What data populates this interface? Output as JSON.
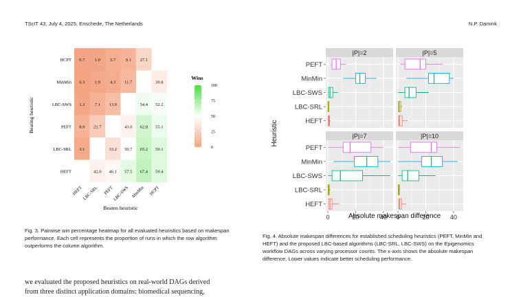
{
  "header": {
    "left": "TScIT 43, July 4, 2025, Enschede, The Netherlands",
    "right": "N.P. Damink"
  },
  "fig3": {
    "caption": "Fig. 3. Pairwise win percentage heatmap for all evaluated heuristics based on makespan performance. Each cell represents the proportion of runs in which the row algorithm outperforms the column algorithm."
  },
  "fig4": {
    "caption": "Fig. 4. Absolute makespan differences for established scheduling heuristics (PEFT, MinMin and HEFT) and the proposed LBC-based algorithms (LBC-SRL, LBC-SWS) on the Epigenomics workflow DAGs across varying processor counts. The x-axis shows the absolute makespan difference. Lower values indicate better scheduling performance."
  },
  "body": {
    "line1": "we evaluated the proposed heuristics on real-world DAGs derived",
    "line2": "from three distinct application domains: biomedical sequencing,"
  },
  "chart_data": [
    {
      "type": "heatmap",
      "xlabel": "Beaten heuristic",
      "ylabel": "Beating heuristic",
      "columns": [
        "HEFT",
        "LBC-SRL",
        "PEFT",
        "LBC-SWS",
        "MinMin",
        "HCPT"
      ],
      "rows": [
        "HCPT",
        "MinMin",
        "LBC-SWS",
        "PEFT",
        "LBC-SRL",
        "HEFT"
      ],
      "values": [
        [
          0.7,
          1.0,
          5.7,
          9.1,
          27.1,
          null
        ],
        [
          0.3,
          1.9,
          4.3,
          11.7,
          null,
          39.8
        ],
        [
          1.3,
          7.1,
          13.9,
          null,
          54.4,
          52.2
        ],
        [
          8.9,
          21.7,
          null,
          43.0,
          62.8,
          55.1
        ],
        [
          3.1,
          null,
          33.2,
          50.7,
          65.2,
          59.1
        ],
        [
          null,
          42.0,
          46.1,
          57.5,
          67.4,
          59.4
        ]
      ],
      "legend": {
        "title": "Wins",
        "ticks": [
          0,
          25,
          50,
          75,
          100
        ],
        "low_color": "#f4a582",
        "mid_color": "#ffffff",
        "high_color": "#4ddd44"
      }
    },
    {
      "type": "boxplot",
      "xlabel": "Absolute makespan difference",
      "ylabel": "Heuristic",
      "categories": [
        "PEFT",
        "MinMin",
        "LBC-SWS",
        "LBC-SRL",
        "HEFT"
      ],
      "colors": {
        "PEFT": "#e76bf3",
        "MinMin": "#00b0f6",
        "LBC-SWS": "#00bf7d",
        "LBC-SRL": "#a3a500",
        "HEFT": "#f8766d"
      },
      "x_ticks": [
        0,
        20,
        40
      ],
      "xlim": [
        -1.5,
        47
      ],
      "panels": [
        {
          "label": "|P|=2",
          "boxes": {
            "PEFT": [
              2,
              3,
              6,
              9,
              13
            ],
            "MinMin": [
              11,
              20,
              23,
              27,
              35
            ],
            "LBC-SWS": [
              0,
              0.5,
              1.5,
              3.5,
              7.5
            ],
            "LBC-SRL": [
              0,
              0.1,
              0.3,
              0.5,
              0.8
            ],
            "HEFT": [
              0,
              0.3,
              0.8,
              1.2,
              2
            ]
          }
        },
        {
          "label": "|P|=5",
          "boxes": {
            "PEFT": [
              2,
              5,
              16,
              20,
              32
            ],
            "MinMin": [
              6,
              22,
              26,
              37,
              40
            ],
            "LBC-SWS": [
              0,
              5,
              8,
              13,
              22
            ],
            "LBC-SRL": [
              0,
              0.3,
              1,
              2,
              3
            ],
            "HEFT": [
              0,
              0.5,
              1,
              3,
              7
            ]
          }
        },
        {
          "label": "|P|=7",
          "boxes": {
            "PEFT": [
              0,
              11,
              16,
              31,
              40
            ],
            "MinMin": [
              4,
              19,
              28,
              36,
              45
            ],
            "LBC-SWS": [
              0,
              3,
              9,
              25,
              45
            ],
            "LBC-SRL": [
              0,
              0.2,
              0.5,
              1,
              2
            ],
            "HEFT": [
              0,
              0.5,
              1.5,
              3,
              8
            ]
          }
        },
        {
          "label": "|P|=10",
          "boxes": {
            "PEFT": [
              0,
              9,
              24,
              28,
              45
            ],
            "MinMin": [
              0,
              17,
              24,
              32,
              43
            ],
            "LBC-SWS": [
              0,
              3,
              7,
              15,
              27
            ],
            "LBC-SRL": [
              0,
              0.2,
              0.5,
              1,
              1.5
            ],
            "HEFT": [
              0,
              0.5,
              1.2,
              2.5,
              6
            ]
          }
        }
      ]
    }
  ]
}
